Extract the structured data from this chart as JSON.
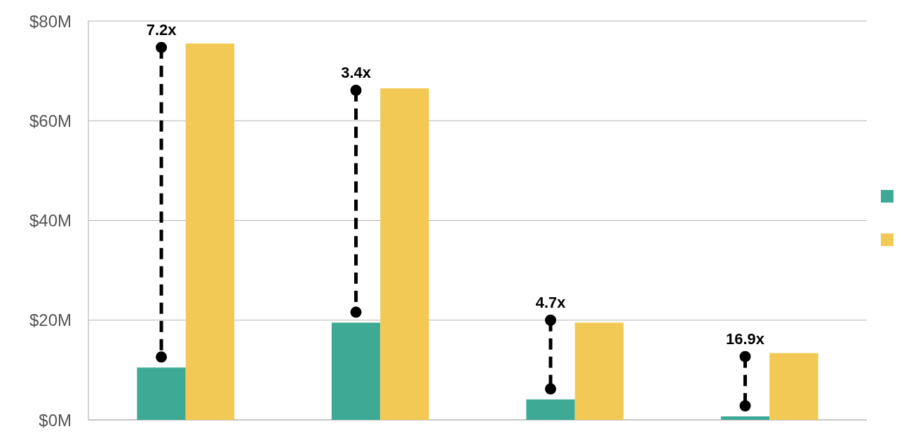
{
  "chart_data": {
    "type": "bar",
    "categories": [
      null,
      null,
      null,
      null
    ],
    "series": [
      {
        "color": "#3eaa95",
        "values": [
          10.5,
          19.5,
          4.1,
          0.7
        ]
      },
      {
        "color": "#f2c955",
        "values": [
          75.5,
          66.5,
          19.5,
          13.4
        ]
      }
    ],
    "ylim": [
      0,
      80
    ],
    "yticks": [
      {
        "value": 0,
        "label": "$0M"
      },
      {
        "value": 20,
        "label": "$20M"
      },
      {
        "value": 40,
        "label": "$40M"
      },
      {
        "value": 60,
        "label": "$60M"
      },
      {
        "value": 80,
        "label": "$80M"
      }
    ],
    "grid": "y",
    "annotations": [
      {
        "text": "7.2x",
        "y": 74.7
      },
      {
        "text": "3.4x",
        "y": 66.1
      },
      {
        "text": "4.7x",
        "y": 20
      },
      {
        "text": "16.9x",
        "y": 12.7
      }
    ]
  }
}
